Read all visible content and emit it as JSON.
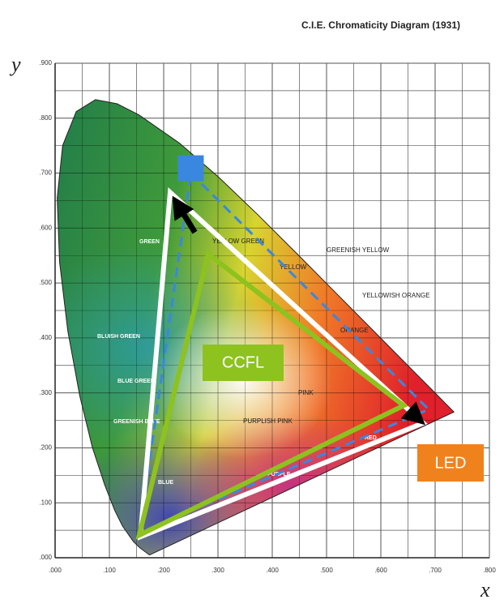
{
  "chart_data": {
    "type": "cie",
    "title": "C.I.E. Chromaticity Diagram (1931)",
    "xlabel": "x",
    "ylabel": "y",
    "xlim": [
      0,
      0.8
    ],
    "ylim": [
      0,
      0.9
    ],
    "xticks": [
      {
        "value": 0,
        "label": ".000"
      },
      {
        "value": 0.1,
        "label": ".100"
      },
      {
        "value": 0.2,
        "label": ".200"
      },
      {
        "value": 0.3,
        "label": ".300"
      },
      {
        "value": 0.4,
        "label": ".400"
      },
      {
        "value": 0.5,
        "label": ".500"
      },
      {
        "value": 0.6,
        "label": ".600"
      },
      {
        "value": 0.7,
        "label": ".700"
      },
      {
        "value": 0.8,
        "label": ".800"
      }
    ],
    "yticks": [
      {
        "value": 0,
        "label": ".000"
      },
      {
        "value": 0.1,
        "label": ".100"
      },
      {
        "value": 0.2,
        "label": ".200"
      },
      {
        "value": 0.3,
        "label": ".300"
      },
      {
        "value": 0.4,
        "label": ".400"
      },
      {
        "value": 0.5,
        "label": ".500"
      },
      {
        "value": 0.6,
        "label": ".600"
      },
      {
        "value": 0.7,
        "label": ".700"
      },
      {
        "value": 0.8,
        "label": ".800"
      },
      {
        "value": 0.9,
        "label": ".900"
      }
    ],
    "grid": true,
    "locus": {
      "x": [
        0.1741,
        0.1566,
        0.144,
        0.1241,
        0.1096,
        0.0913,
        0.0687,
        0.0454,
        0.0235,
        0.0082,
        0.0039,
        0.0139,
        0.0389,
        0.0743,
        0.1142,
        0.1547,
        0.2296,
        0.3016,
        0.3731,
        0.4441,
        0.5125,
        0.5752,
        0.627,
        0.6915,
        0.7347
      ],
      "y": [
        0.005,
        0.0177,
        0.0297,
        0.0578,
        0.0868,
        0.1327,
        0.2007,
        0.295,
        0.4127,
        0.5384,
        0.6548,
        0.7502,
        0.812,
        0.8338,
        0.8262,
        0.8059,
        0.7543,
        0.6923,
        0.6245,
        0.5547,
        0.4866,
        0.4242,
        0.3725,
        0.3083,
        0.2653
      ]
    },
    "series": [
      {
        "name": "LED",
        "color": "#ffffff",
        "x": [
          0.212,
          0.678,
          0.157
        ],
        "y": [
          0.665,
          0.245,
          0.038
        ]
      },
      {
        "name": "CCFL",
        "color": "#8dc21f",
        "x": [
          0.282,
          0.642,
          0.155
        ],
        "y": [
          0.553,
          0.277,
          0.041
        ]
      },
      {
        "color": "#3a87e0",
        "linestyle": "dashed",
        "marker": "square",
        "x": [
          0.25,
          0.688,
          0.155
        ],
        "y": [
          0.7,
          0.27,
          0.045
        ]
      }
    ],
    "annotations": [
      "GREEN",
      "BLUISH GREEN",
      "BLUE GREEN",
      "GREENISH BLUE",
      "YELLOW GREEN",
      "YELLOW",
      "GREENISH YELLOW",
      "YELLOWISH ORANGE",
      "ORANGE",
      "PINK",
      "PURPLISH PINK",
      "RED",
      "PURPLE",
      "BLUE"
    ]
  }
}
